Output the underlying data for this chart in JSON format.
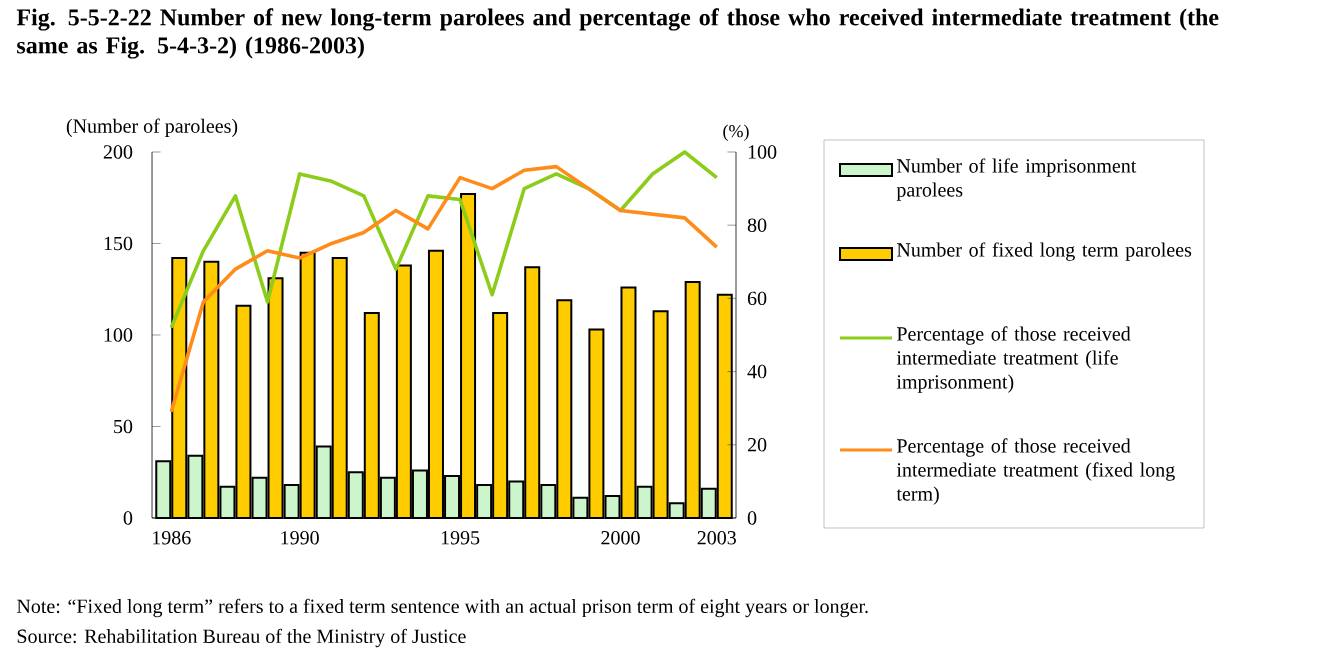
{
  "chart_data": {
    "type": "bar",
    "title": "Fig. 5-5-2-22 Number of new long-term parolees and percentage of those who received intermediate treatment (the same as Fig. 5-4-3-2) (1986-2003)",
    "ylabel": "(Number of parolees)",
    "y2label": "(%)",
    "categories": [
      "1986",
      null,
      null,
      null,
      "1990",
      null,
      null,
      null,
      null,
      "1995",
      null,
      null,
      null,
      null,
      "2000",
      null,
      null,
      "2003"
    ],
    "series": [
      {
        "name": "Number of life imprisonment parolees",
        "color": "#ccf5cc",
        "values": [
          31,
          34,
          17,
          22,
          18,
          39,
          25,
          22,
          26,
          23,
          18,
          20,
          18,
          11,
          12,
          17,
          8,
          16
        ]
      },
      {
        "name": "Number of fixed long term parolees",
        "color": "#ffcc00",
        "values": [
          142,
          140,
          116,
          131,
          145,
          142,
          112,
          138,
          146,
          177,
          112,
          137,
          119,
          103,
          126,
          113,
          129,
          122
        ]
      },
      {
        "name": "Percentage of those received intermediate treatment (life imprisonment)",
        "type": "line",
        "axis": "y2",
        "color": "#8ccc1a",
        "values": [
          52,
          73,
          88,
          59,
          94,
          92,
          88,
          68,
          88,
          87,
          61,
          90,
          94,
          90,
          84,
          94,
          100,
          93
        ]
      },
      {
        "name": "Percentage of those received intermediate treatment (fixed long term)",
        "type": "line",
        "axis": "y2",
        "color": "#ff8c1a",
        "values": [
          29,
          59,
          68,
          73,
          71,
          75,
          78,
          84,
          79,
          93,
          90,
          95,
          96,
          90,
          84,
          83,
          82,
          74
        ]
      }
    ],
    "ylim": [
      0,
      200
    ],
    "yticks": [
      0,
      50,
      100,
      150,
      200
    ],
    "y2lim": [
      0,
      100
    ],
    "y2ticks": [
      0,
      20,
      40,
      60,
      80,
      100
    ],
    "legend": "right",
    "annotations": [
      "Note: “Fixed long term” refers to a fixed term sentence with an actual prison term of eight years or longer.",
      "Source: Rehabilitation Bureau of the Ministry of Justice"
    ]
  }
}
